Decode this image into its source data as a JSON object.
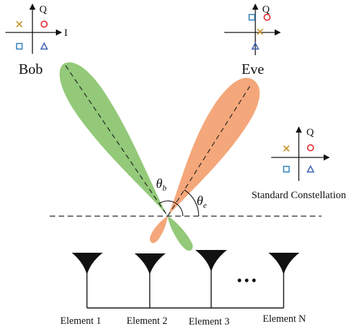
{
  "constellations": {
    "bob": {
      "label": "Bob",
      "q_axis": "Q",
      "i_axis": "I"
    },
    "eve": {
      "label": "Eve",
      "q_axis": "Q"
    },
    "standard": {
      "label": "Standard Constellation",
      "q_axis": "Q"
    }
  },
  "symbol_colors": {
    "cross": "#c8952b",
    "circle": "#e3262c",
    "square": "#2c7fb8",
    "triangle": "#3b5fb3"
  },
  "beams": {
    "bob_color": "#93c979",
    "eve_color": "#f4a77a"
  },
  "angles": {
    "theta_b": {
      "symbol": "θ",
      "sub": "b"
    },
    "theta_e": {
      "symbol": "θ",
      "sub": "e"
    }
  },
  "array": {
    "elements": [
      {
        "label": "Element 1"
      },
      {
        "label": "Element 2"
      },
      {
        "label": "Element 3"
      },
      {
        "label": "Element N"
      }
    ]
  }
}
